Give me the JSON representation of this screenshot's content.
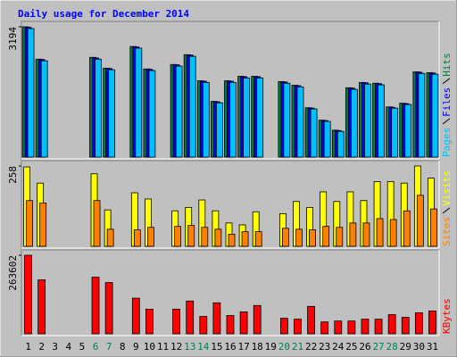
{
  "chart_data": [
    {
      "type": "bar",
      "title": "Daily usage for December 2014",
      "ylim": [
        0,
        3194
      ],
      "yticks": [
        3194
      ],
      "series": [
        {
          "name": "Hits",
          "color": "#008040",
          "values": [
            3194,
            2400,
            0,
            0,
            0,
            2445,
            2180,
            0,
            2710,
            2160,
            0,
            2270,
            2510,
            1870,
            1365,
            1870,
            1980,
            1980,
            0,
            1850,
            1760,
            1210,
            905,
            660,
            1700,
            1830,
            1810,
            1230,
            1320,
            2090,
            2070
          ]
        },
        {
          "name": "Files",
          "color": "#0000ff",
          "values": [
            3180,
            2390,
            0,
            0,
            0,
            2430,
            2170,
            0,
            2700,
            2150,
            0,
            2260,
            2500,
            1860,
            1355,
            1860,
            1970,
            1970,
            0,
            1840,
            1750,
            1200,
            895,
            650,
            1690,
            1820,
            1800,
            1220,
            1310,
            2080,
            2060
          ]
        },
        {
          "name": "Pages",
          "color": "#00c0ff",
          "values": [
            3150,
            2360,
            0,
            0,
            0,
            2400,
            2140,
            0,
            2670,
            2120,
            0,
            2230,
            2470,
            1830,
            1330,
            1830,
            1940,
            1940,
            0,
            1810,
            1720,
            1180,
            875,
            630,
            1660,
            1790,
            1770,
            1200,
            1290,
            2050,
            2030
          ]
        }
      ]
    },
    {
      "type": "bar",
      "ylim": [
        0,
        258
      ],
      "yticks": [
        258
      ],
      "series": [
        {
          "name": "Visits",
          "color": "#ffff00",
          "values": [
            255,
            203,
            0,
            0,
            0,
            233,
            117,
            0,
            172,
            152,
            0,
            114,
            125,
            149,
            114,
            75,
            69,
            111,
            0,
            105,
            144,
            125,
            175,
            144,
            175,
            147,
            208,
            208,
            203,
            258,
            219
          ]
        },
        {
          "name": "Sites",
          "color": "#ff8000",
          "values": [
            147,
            139,
            0,
            0,
            0,
            147,
            55,
            0,
            53,
            61,
            0,
            64,
            67,
            61,
            55,
            39,
            47,
            47,
            0,
            58,
            55,
            53,
            64,
            61,
            75,
            75,
            89,
            86,
            114,
            164,
            120
          ]
        }
      ]
    },
    {
      "type": "bar",
      "ylim": [
        0,
        263602
      ],
      "yticks": [
        263602
      ],
      "categories": [
        "1",
        "2",
        "3",
        "4",
        "5",
        "6",
        "7",
        "8",
        "9",
        "10",
        "11",
        "12",
        "13",
        "14",
        "15",
        "16",
        "17",
        "18",
        "19",
        "20",
        "21",
        "22",
        "23",
        "24",
        "25",
        "26",
        "27",
        "28",
        "29",
        "30",
        "31"
      ],
      "highlight_categories": [
        5,
        6,
        12,
        13,
        19,
        20,
        26,
        27
      ],
      "highlight_color": "#00805c",
      "series": [
        {
          "name": "KBytes",
          "color": "#ff0000",
          "values": [
            263602,
            180850,
            0,
            0,
            0,
            190000,
            172000,
            0,
            119500,
            82800,
            0,
            82800,
            110000,
            58200,
            104000,
            61300,
            73600,
            95000,
            0,
            52100,
            49000,
            92000,
            39800,
            42900,
            42900,
            49000,
            49000,
            64400,
            55200,
            70500,
            76600
          ]
        }
      ]
    }
  ]
}
